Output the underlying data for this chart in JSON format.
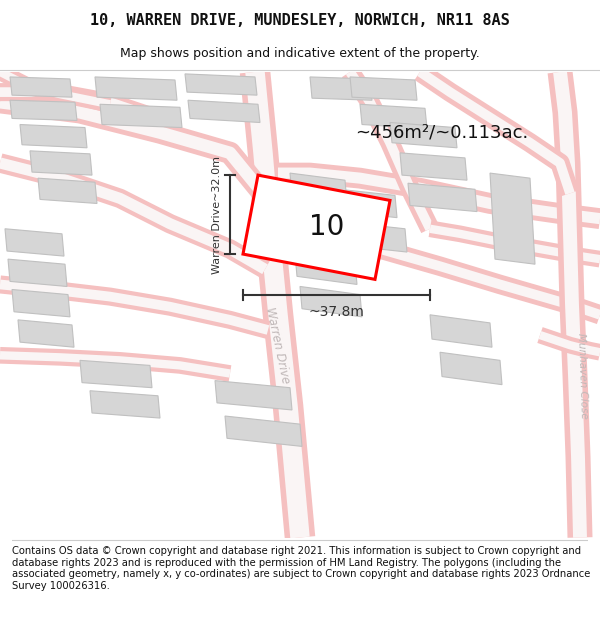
{
  "title_line1": "10, WARREN DRIVE, MUNDESLEY, NORWICH, NR11 8AS",
  "title_line2": "Map shows position and indicative extent of the property.",
  "footer_text": "Contains OS data © Crown copyright and database right 2021. This information is subject to Crown copyright and database rights 2023 and is reproduced with the permission of HM Land Registry. The polygons (including the associated geometry, namely x, y co-ordinates) are subject to Crown copyright and database rights 2023 Ordnance Survey 100026316.",
  "area_label": "~456m²/~0.113ac.",
  "number_label": "10",
  "width_label": "~37.8m",
  "height_label": "Warren Drive~32.0m",
  "road_label_1": "Warren Drive",
  "road_label_2": "Munhaven Close",
  "background_color": "#ffffff",
  "map_bg_color": "#f7f7f7",
  "building_fill": "#d6d6d6",
  "building_edge": "#c0c0c0",
  "road_edge_color": "#f5c0c0",
  "road_center_color": "#faf5f5",
  "highlight_stroke": "#ff0000",
  "dim_color": "#333333",
  "road_label_color": "#c0b8b8",
  "title_fontsize": 11,
  "subtitle_fontsize": 9,
  "footer_fontsize": 7.2
}
